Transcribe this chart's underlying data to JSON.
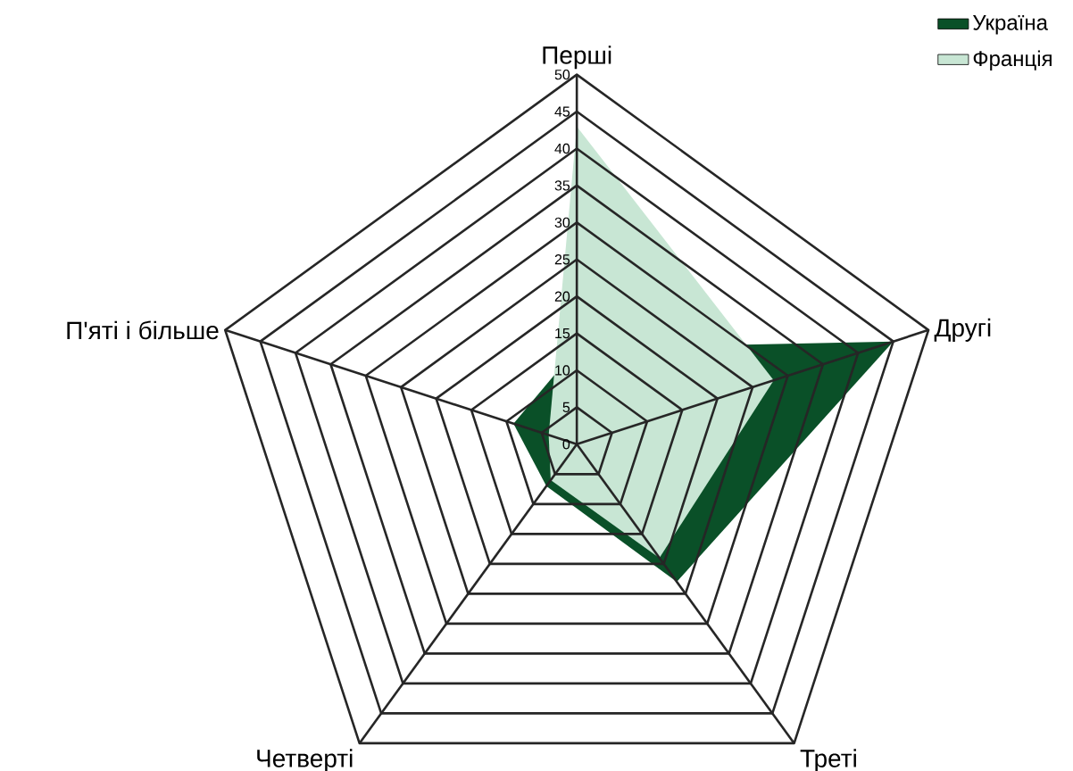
{
  "chart_data": {
    "type": "radar",
    "categories": [
      "Перші",
      "Другі",
      "Треті",
      "Четверті",
      "П'яті і більше"
    ],
    "series": [
      {
        "name": "Україна",
        "color": "#0a5028",
        "values": [
          13,
          45,
          23,
          7,
          9
        ]
      },
      {
        "name": "Франція",
        "color": "#c8e6d4",
        "values": [
          43,
          28,
          19,
          6,
          4
        ]
      }
    ],
    "ylim": [
      0,
      50
    ],
    "yticks": [
      0,
      5,
      10,
      15,
      20,
      25,
      30,
      35,
      40,
      45,
      50
    ],
    "grid": true,
    "legend": "top right"
  }
}
